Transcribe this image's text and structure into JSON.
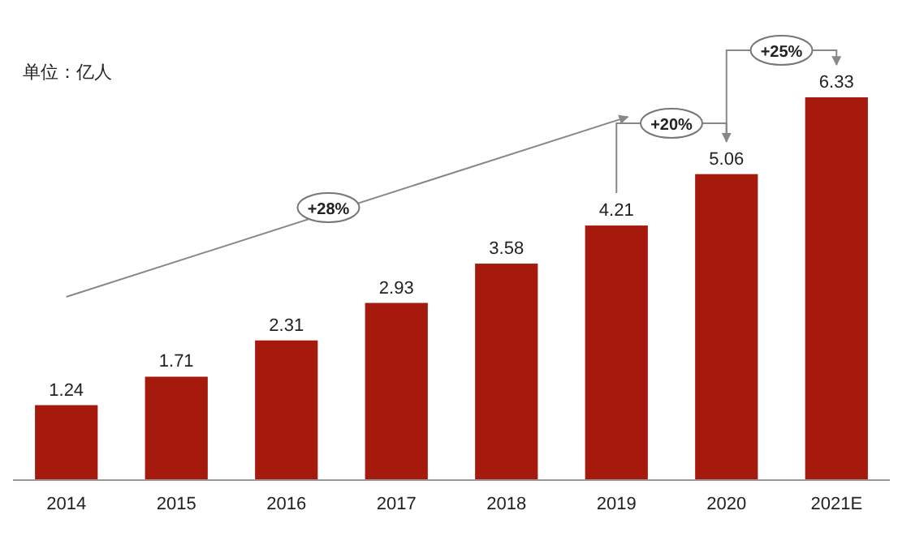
{
  "chart_data": {
    "type": "bar",
    "categories": [
      "2014",
      "2015",
      "2016",
      "2017",
      "2018",
      "2019",
      "2020",
      "2021E"
    ],
    "values": [
      1.24,
      1.71,
      2.31,
      2.93,
      3.58,
      4.21,
      5.06,
      6.33
    ],
    "color": "#a51a0c",
    "data_labels": true,
    "annotations": [
      "单位：亿人",
      "+28%",
      "+20%",
      "+25%"
    ]
  }
}
